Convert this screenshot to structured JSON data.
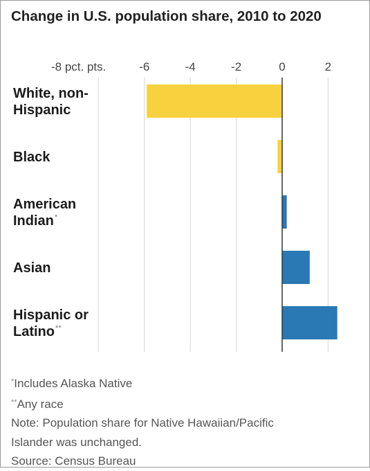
{
  "title": "Change in U.S. population share, 2010 to 2020",
  "chart_data": {
    "type": "bar",
    "orientation": "horizontal",
    "title": "Change in U.S. population share, 2010 to 2020",
    "xlim": [
      -9,
      2.6
    ],
    "ticks": [
      {
        "value": -8,
        "label": "-8 pct. pts."
      },
      {
        "value": -6,
        "label": "-6"
      },
      {
        "value": -4,
        "label": "-4"
      },
      {
        "value": -2,
        "label": "-2"
      },
      {
        "value": 0,
        "label": "0"
      },
      {
        "value": 2,
        "label": "2"
      }
    ],
    "grid": true,
    "categories": [
      {
        "lines": [
          "White, non-",
          "Hispanic"
        ],
        "marker": ""
      },
      {
        "lines": [
          "Black"
        ],
        "marker": ""
      },
      {
        "lines": [
          "American",
          "Indian"
        ],
        "marker": "*"
      },
      {
        "lines": [
          "Asian"
        ],
        "marker": ""
      },
      {
        "lines": [
          "Hispanic or",
          "Latino"
        ],
        "marker": "**"
      }
    ],
    "values": [
      -5.9,
      -0.2,
      0.2,
      1.2,
      2.4
    ],
    "colors": {
      "negative": "#f7d23e",
      "positive": "#2a78b4",
      "grid": "#dcdcdc",
      "zero_line": "#333333"
    }
  },
  "notes": [
    {
      "marker": "*",
      "text": "Includes Alaska Native"
    },
    {
      "marker": "**",
      "text": "Any race"
    },
    {
      "marker": "",
      "text": "Note: Population share for Native Hawaiian/Pacific"
    },
    {
      "marker": "",
      "text": "Islander was unchanged."
    },
    {
      "marker": "",
      "text": "Source: Census Bureau"
    }
  ]
}
